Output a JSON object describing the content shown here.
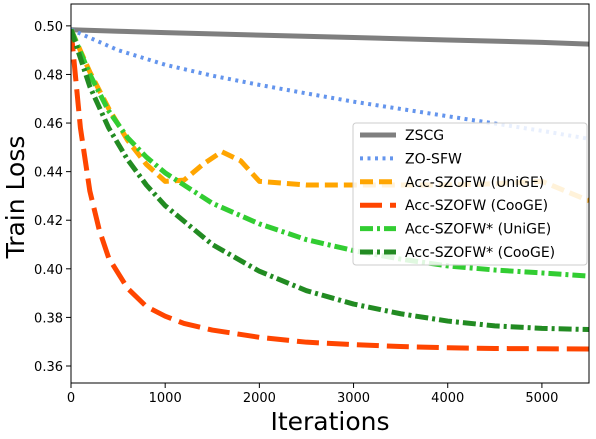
{
  "chart_data": {
    "type": "line",
    "title": "",
    "xlabel": "Iterations",
    "ylabel": "Train Loss",
    "xlim": [
      0,
      5500
    ],
    "ylim": [
      0.353,
      0.509
    ],
    "xticks": [
      0,
      1000,
      2000,
      3000,
      4000,
      5000
    ],
    "xtick_labels": [
      "0",
      "1000",
      "2000",
      "3000",
      "4000",
      "5000"
    ],
    "yticks": [
      0.36,
      0.38,
      0.4,
      0.42,
      0.44,
      0.46,
      0.48,
      0.5
    ],
    "ytick_labels": [
      "0.36",
      "0.38",
      "0.40",
      "0.42",
      "0.44",
      "0.46",
      "0.48",
      "0.50"
    ],
    "grid": false,
    "legend_position": "right",
    "series": [
      {
        "name": "ZSCG",
        "color": "#7f7f7f",
        "dash": "solid",
        "x": [
          0,
          500,
          1000,
          2000,
          3000,
          4000,
          5000,
          5500
        ],
        "y": [
          0.4984,
          0.4978,
          0.4972,
          0.4962,
          0.4952,
          0.4942,
          0.4932,
          0.4925
        ]
      },
      {
        "name": "ZO-SFW",
        "color": "#6495ed",
        "dash": "dot",
        "x": [
          0,
          500,
          1000,
          1500,
          2000,
          2500,
          3000,
          3500,
          4000,
          4500,
          5000,
          5500
        ],
        "y": [
          0.4985,
          0.49,
          0.484,
          0.4795,
          0.4757,
          0.4722,
          0.4688,
          0.4658,
          0.4628,
          0.4598,
          0.4568,
          0.4535
        ]
      },
      {
        "name": "Acc-SZOFW (UniGE)",
        "color": "#ffa500",
        "dash": "dash",
        "x": [
          0,
          200,
          400,
          600,
          800,
          1000,
          1200,
          1400,
          1600,
          1800,
          2000,
          2500,
          3000,
          3500,
          4000,
          4500,
          5000,
          5500
        ],
        "y": [
          0.4985,
          0.481,
          0.466,
          0.453,
          0.443,
          0.436,
          0.4365,
          0.443,
          0.4482,
          0.4445,
          0.436,
          0.4345,
          0.4345,
          0.4345,
          0.4345,
          0.435,
          0.436,
          0.428
        ]
      },
      {
        "name": "Acc-SZOFW (CooGE)",
        "color": "#ff4500",
        "dash": "longdash",
        "x": [
          0,
          100,
          200,
          300,
          400,
          600,
          800,
          1000,
          1200,
          1500,
          2000,
          2500,
          3000,
          3500,
          4000,
          4500,
          5000,
          5500
        ],
        "y": [
          0.4985,
          0.458,
          0.432,
          0.416,
          0.4045,
          0.392,
          0.3845,
          0.3805,
          0.3775,
          0.3748,
          0.3718,
          0.3698,
          0.3688,
          0.368,
          0.3675,
          0.3672,
          0.3671,
          0.367
        ]
      },
      {
        "name": "Acc-SZOFW* (UniGE)",
        "color": "#32cd32",
        "dash": "dashdot",
        "x": [
          0,
          200,
          400,
          600,
          800,
          1000,
          1500,
          2000,
          2500,
          3000,
          3500,
          4000,
          4500,
          5000,
          5500
        ],
        "y": [
          0.4985,
          0.48,
          0.465,
          0.454,
          0.446,
          0.4395,
          0.427,
          0.4185,
          0.412,
          0.4075,
          0.404,
          0.4012,
          0.3995,
          0.3983,
          0.397
        ]
      },
      {
        "name": "Acc-SZOFW* (CooGE)",
        "color": "#228b22",
        "dash": "dashdot",
        "x": [
          0,
          200,
          400,
          600,
          800,
          1000,
          1500,
          2000,
          2500,
          3000,
          3500,
          4000,
          4500,
          5000,
          5500
        ],
        "y": [
          0.4985,
          0.475,
          0.458,
          0.445,
          0.4345,
          0.426,
          0.41,
          0.399,
          0.391,
          0.3855,
          0.3815,
          0.3785,
          0.3765,
          0.3755,
          0.375
        ]
      }
    ]
  }
}
